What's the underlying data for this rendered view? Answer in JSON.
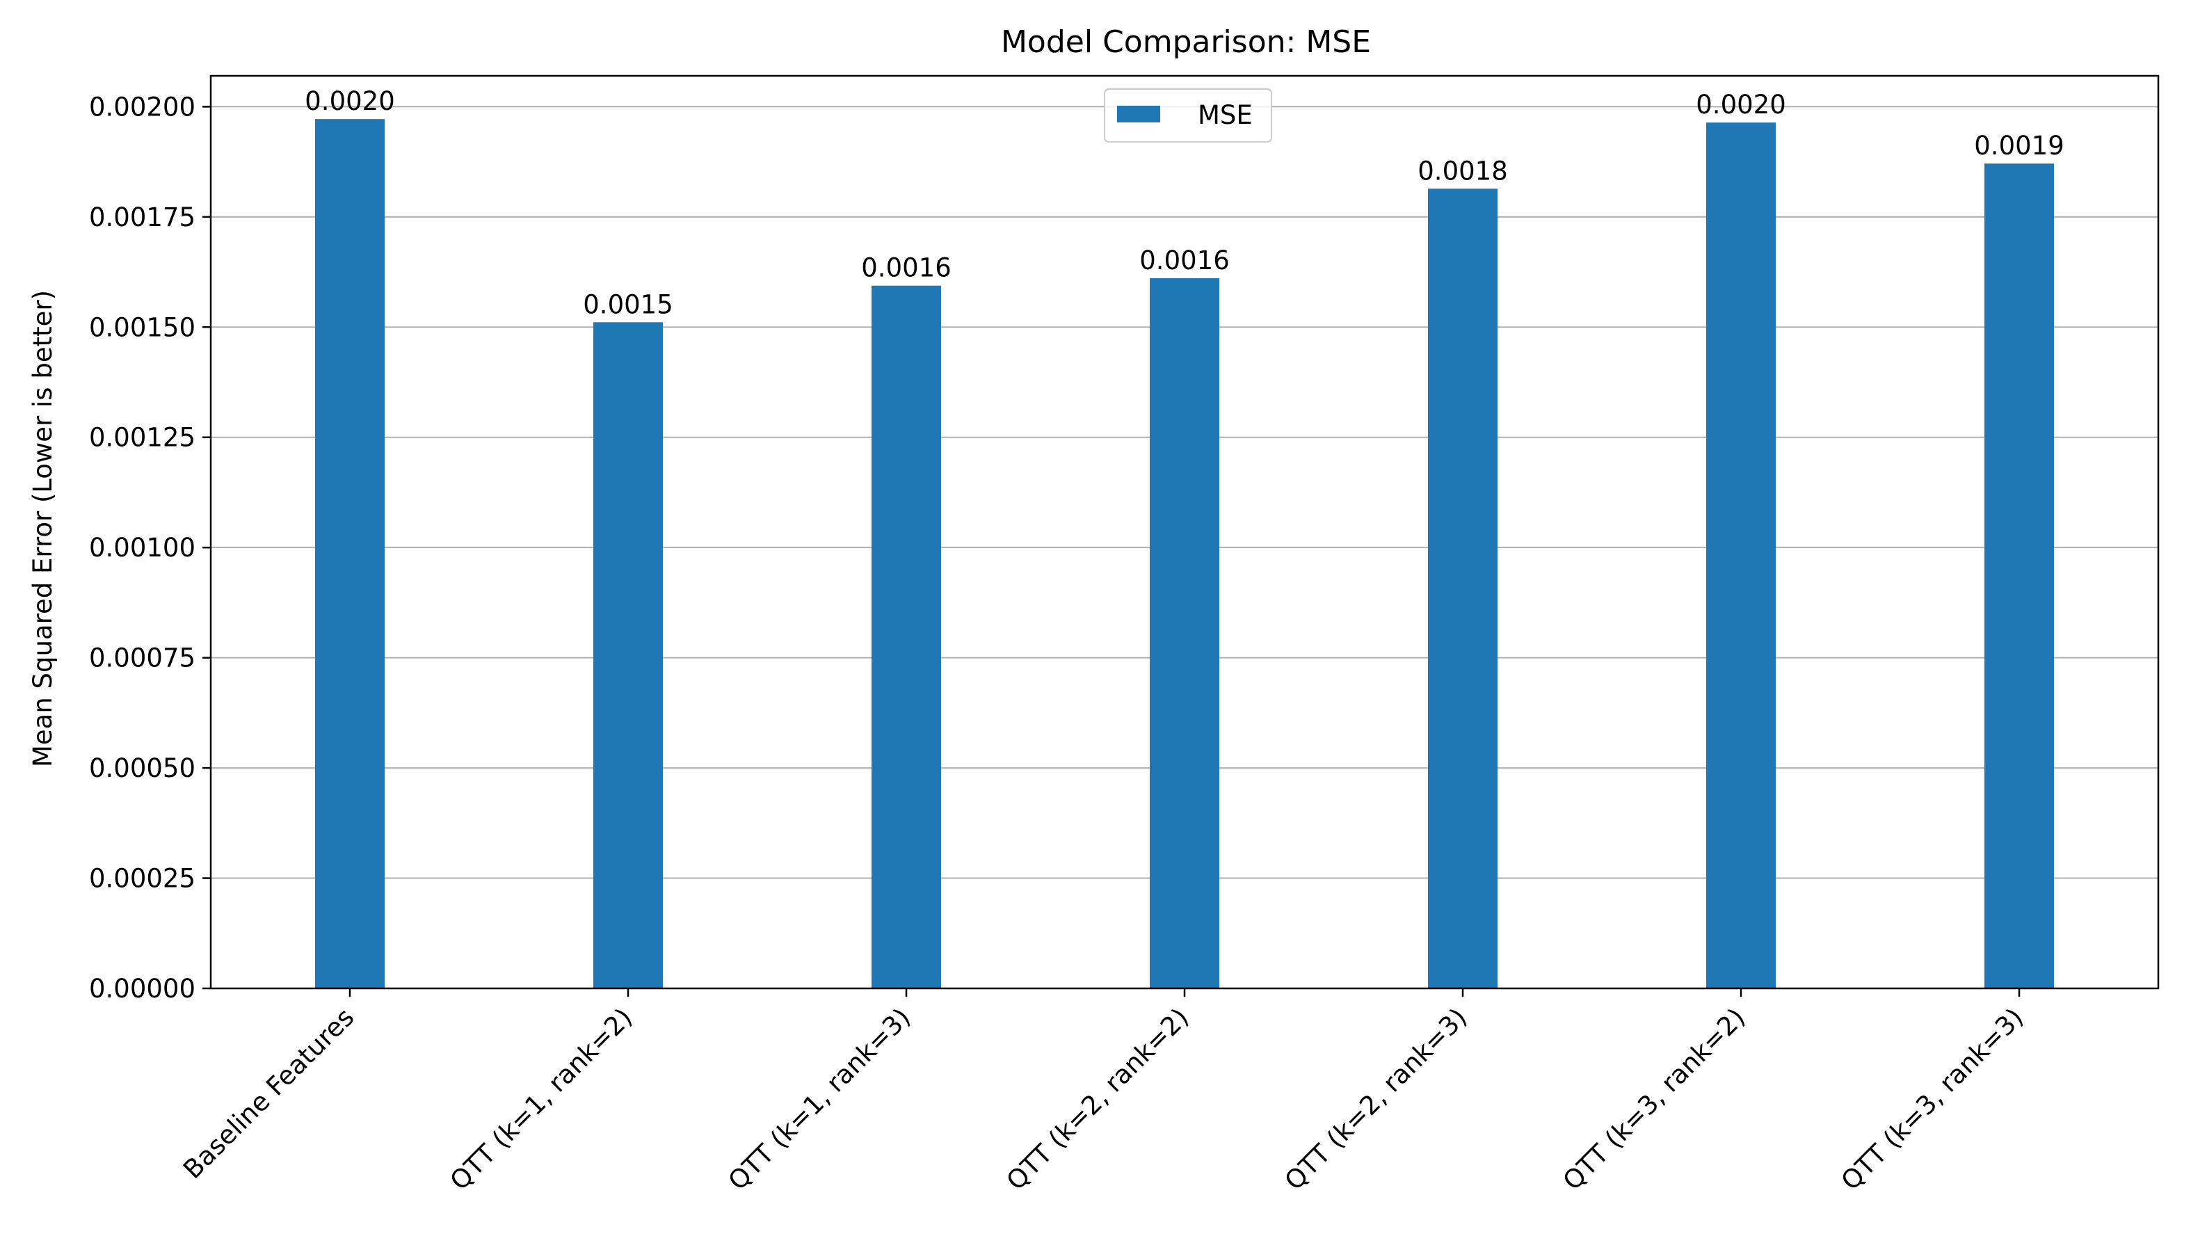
{
  "chart_data": {
    "type": "bar",
    "title": "Model Comparison: MSE",
    "xlabel": "",
    "ylabel": "Mean Squared Error (Lower is better)",
    "categories": [
      "Baseline Features",
      "QTT (k=1, rank=2)",
      "QTT (k=1, rank=3)",
      "QTT (k=2, rank=2)",
      "QTT (k=2, rank=3)",
      "QTT (k=3, rank=2)",
      "QTT (k=3, rank=3)"
    ],
    "series": [
      {
        "name": "MSE",
        "color": "#1f77b4",
        "values": [
          0.001972,
          0.001511,
          0.001594,
          0.001611,
          0.001814,
          0.001964,
          0.001871
        ],
        "value_labels": [
          "0.0020",
          "0.0015",
          "0.0016",
          "0.0016",
          "0.0018",
          "0.0020",
          "0.0019"
        ]
      }
    ],
    "ylim": [
      0,
      0.00207
    ],
    "yticks": [
      0,
      0.00025,
      0.0005,
      0.00075,
      0.001,
      0.00125,
      0.0015,
      0.00175,
      0.002
    ],
    "ytick_labels": [
      "0.00000",
      "0.00025",
      "0.00050",
      "0.00075",
      "0.00100",
      "0.00125",
      "0.00150",
      "0.00175",
      "0.00200"
    ],
    "grid": "y",
    "legend": "top-center"
  }
}
